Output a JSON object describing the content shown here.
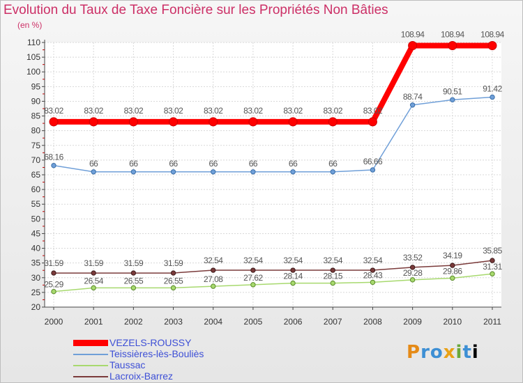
{
  "chart_data": {
    "type": "line",
    "title": "Evolution du Taux de Taxe Foncière sur les Propriétés Non Bâties",
    "ylabel": "(en %)",
    "xlabel": "",
    "ylim": [
      20,
      110
    ],
    "yticks": [
      20,
      25,
      30,
      35,
      40,
      45,
      50,
      55,
      60,
      65,
      70,
      75,
      80,
      85,
      90,
      95,
      100,
      105,
      110
    ],
    "x": [
      "2000",
      "2001",
      "2002",
      "2003",
      "2004",
      "2005",
      "2006",
      "2007",
      "2008",
      "2009",
      "2010",
      "2011"
    ],
    "series": [
      {
        "name": "VEZELS-ROUSSY",
        "color": "#ff0000",
        "values": [
          83.02,
          83.02,
          83.02,
          83.02,
          83.02,
          83.02,
          83.02,
          83.02,
          83.02,
          108.94,
          108.94,
          108.94
        ],
        "labels": [
          "83.02",
          "83.02",
          "83.02",
          "83.02",
          "83.02",
          "83.02",
          "83.02",
          "83.02",
          "83.02",
          "108.94",
          "108.94",
          "108.94"
        ]
      },
      {
        "name": "Teissières-lès-Bouliès",
        "color": "#6f9fd8",
        "values": [
          68.16,
          66,
          66,
          66,
          66,
          66,
          66,
          66,
          66.66,
          88.74,
          90.51,
          91.42
        ],
        "labels": [
          "68.16",
          "66",
          "66",
          "66",
          "66",
          "66",
          "66",
          "66",
          "66.66",
          "88.74",
          "90.51",
          "91.42"
        ]
      },
      {
        "name": "Taussac",
        "color": "#a7d96e",
        "values": [
          25.29,
          26.54,
          26.55,
          26.55,
          27.08,
          27.62,
          28.14,
          28.15,
          28.43,
          29.28,
          29.86,
          31.31
        ],
        "labels": [
          "25.29",
          "26.54",
          "26.55",
          "26.55",
          "27.08",
          "27.62",
          "28.14",
          "28.15",
          "28.43",
          "29.28",
          "29.86",
          "31.31"
        ]
      },
      {
        "name": "Lacroix-Barrez",
        "color": "#7a3a3a",
        "values": [
          31.59,
          31.59,
          31.59,
          31.59,
          32.54,
          32.54,
          32.54,
          32.54,
          32.54,
          33.52,
          34.19,
          35.85
        ],
        "labels": [
          "31.59",
          "31.59",
          "31.59",
          "31.59",
          "32.54",
          "32.54",
          "32.54",
          "32.54",
          "32.54",
          "33.52",
          "34.19",
          "35.85"
        ]
      }
    ],
    "legend_position": "bottom-left",
    "grid": true
  },
  "logo": {
    "letters": [
      "P",
      "r",
      "o",
      "x",
      "i",
      "t",
      "i"
    ]
  }
}
